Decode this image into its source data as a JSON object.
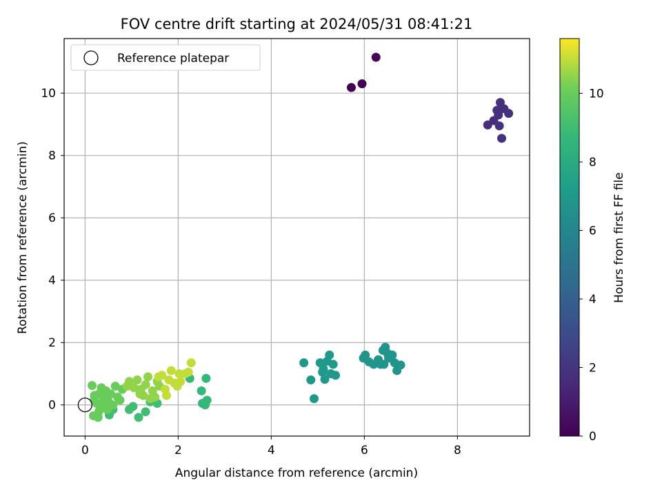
{
  "chart_data": {
    "type": "scatter",
    "title": "FOV centre drift starting at 2024/05/31 08:41:21",
    "xlabel": "Angular distance from reference (arcmin)",
    "ylabel": "Rotation from reference (arcmin)",
    "xlim": [
      -0.45,
      9.55
    ],
    "ylim": [
      -1.0,
      11.75
    ],
    "xticks": [
      0,
      2,
      4,
      6,
      8
    ],
    "yticks": [
      0,
      2,
      4,
      6,
      8,
      10
    ],
    "grid": true,
    "legend": {
      "position": "top-left",
      "entries": [
        "Reference platepar"
      ]
    },
    "reference_point": {
      "x": 0,
      "y": 0,
      "label": "Reference platepar"
    },
    "colorbar": {
      "label": "Hours from first FF file",
      "range": [
        0,
        11.6
      ],
      "ticks": [
        0,
        2,
        4,
        6,
        8,
        10
      ],
      "colormap": "viridis"
    },
    "points": [
      {
        "x": 5.72,
        "y": 10.18,
        "c": 0.0
      },
      {
        "x": 5.95,
        "y": 10.3,
        "c": 0.1
      },
      {
        "x": 6.25,
        "y": 11.15,
        "c": 0.2
      },
      {
        "x": 8.65,
        "y": 8.98,
        "c": 1.7
      },
      {
        "x": 8.78,
        "y": 9.12,
        "c": 1.7
      },
      {
        "x": 8.85,
        "y": 9.45,
        "c": 1.8
      },
      {
        "x": 8.92,
        "y": 9.7,
        "c": 1.8
      },
      {
        "x": 9.0,
        "y": 9.5,
        "c": 1.8
      },
      {
        "x": 9.1,
        "y": 9.35,
        "c": 1.9
      },
      {
        "x": 8.9,
        "y": 8.95,
        "c": 1.9
      },
      {
        "x": 8.95,
        "y": 8.55,
        "c": 1.9
      },
      {
        "x": 8.88,
        "y": 9.3,
        "c": 1.8
      },
      {
        "x": 4.7,
        "y": 1.35,
        "c": 7.0
      },
      {
        "x": 4.85,
        "y": 0.8,
        "c": 7.0
      },
      {
        "x": 4.92,
        "y": 0.2,
        "c": 7.0
      },
      {
        "x": 5.05,
        "y": 1.35,
        "c": 7.0
      },
      {
        "x": 5.1,
        "y": 1.05,
        "c": 7.0
      },
      {
        "x": 5.15,
        "y": 0.82,
        "c": 7.0
      },
      {
        "x": 5.2,
        "y": 1.4,
        "c": 7.0
      },
      {
        "x": 5.25,
        "y": 1.6,
        "c": 7.0
      },
      {
        "x": 5.28,
        "y": 1.0,
        "c": 7.0
      },
      {
        "x": 5.33,
        "y": 1.3,
        "c": 7.0
      },
      {
        "x": 5.38,
        "y": 0.95,
        "c": 7.0
      },
      {
        "x": 5.12,
        "y": 1.15,
        "c": 7.0
      },
      {
        "x": 5.98,
        "y": 1.5,
        "c": 6.8
      },
      {
        "x": 6.02,
        "y": 1.6,
        "c": 6.8
      },
      {
        "x": 6.1,
        "y": 1.38,
        "c": 6.8
      },
      {
        "x": 6.2,
        "y": 1.3,
        "c": 6.8
      },
      {
        "x": 6.3,
        "y": 1.45,
        "c": 6.8
      },
      {
        "x": 6.35,
        "y": 1.3,
        "c": 6.8
      },
      {
        "x": 6.4,
        "y": 1.75,
        "c": 6.8
      },
      {
        "x": 6.45,
        "y": 1.85,
        "c": 6.8
      },
      {
        "x": 6.5,
        "y": 1.65,
        "c": 6.8
      },
      {
        "x": 6.52,
        "y": 1.5,
        "c": 6.8
      },
      {
        "x": 6.6,
        "y": 1.6,
        "c": 6.8
      },
      {
        "x": 6.65,
        "y": 1.35,
        "c": 6.8
      },
      {
        "x": 6.7,
        "y": 1.1,
        "c": 6.8
      },
      {
        "x": 6.78,
        "y": 1.28,
        "c": 6.8
      },
      {
        "x": 6.42,
        "y": 1.3,
        "c": 6.8
      },
      {
        "x": 2.25,
        "y": 0.85,
        "c": 8.7
      },
      {
        "x": 2.5,
        "y": 0.45,
        "c": 8.7
      },
      {
        "x": 2.52,
        "y": 0.05,
        "c": 8.7
      },
      {
        "x": 2.58,
        "y": 0.0,
        "c": 8.7
      },
      {
        "x": 2.62,
        "y": 0.15,
        "c": 8.7
      },
      {
        "x": 2.6,
        "y": 0.85,
        "c": 8.7
      },
      {
        "x": 1.15,
        "y": -0.4,
        "c": 9.0
      },
      {
        "x": 0.95,
        "y": -0.15,
        "c": 9.0
      },
      {
        "x": 1.03,
        "y": -0.05,
        "c": 9.0
      },
      {
        "x": 1.3,
        "y": -0.22,
        "c": 9.0
      },
      {
        "x": 1.4,
        "y": 0.1,
        "c": 9.0
      },
      {
        "x": 1.55,
        "y": 0.05,
        "c": 9.0
      },
      {
        "x": 0.52,
        "y": -0.32,
        "c": 9.0
      },
      {
        "x": 0.6,
        "y": -0.15,
        "c": 9.0
      },
      {
        "x": 0.15,
        "y": 0.62,
        "c": 10.0
      },
      {
        "x": 0.2,
        "y": 0.3,
        "c": 10.0
      },
      {
        "x": 0.25,
        "y": 0.05,
        "c": 10.0
      },
      {
        "x": 0.3,
        "y": -0.2,
        "c": 10.0
      },
      {
        "x": 0.18,
        "y": -0.35,
        "c": 10.0
      },
      {
        "x": 0.28,
        "y": -0.4,
        "c": 10.0
      },
      {
        "x": 0.35,
        "y": 0.55,
        "c": 10.0
      },
      {
        "x": 0.4,
        "y": 0.2,
        "c": 10.0
      },
      {
        "x": 0.45,
        "y": 0.45,
        "c": 10.0
      },
      {
        "x": 0.5,
        "y": 0.1,
        "c": 10.0
      },
      {
        "x": 0.55,
        "y": 0.35,
        "c": 10.0
      },
      {
        "x": 0.6,
        "y": 0.0,
        "c": 10.0
      },
      {
        "x": 0.65,
        "y": 0.6,
        "c": 10.0
      },
      {
        "x": 0.7,
        "y": 0.25,
        "c": 10.0
      },
      {
        "x": 0.75,
        "y": 0.15,
        "c": 10.0
      },
      {
        "x": 0.8,
        "y": 0.5,
        "c": 10.0
      },
      {
        "x": 0.3,
        "y": 0.35,
        "c": 10.0
      },
      {
        "x": 0.38,
        "y": -0.05,
        "c": 10.0
      },
      {
        "x": 0.2,
        "y": 0.15,
        "c": 10.0
      },
      {
        "x": 0.48,
        "y": -0.15,
        "c": 10.0
      },
      {
        "x": 0.9,
        "y": 0.6,
        "c": 10.5
      },
      {
        "x": 0.95,
        "y": 0.75,
        "c": 10.5
      },
      {
        "x": 1.05,
        "y": 0.55,
        "c": 10.5
      },
      {
        "x": 1.12,
        "y": 0.8,
        "c": 10.5
      },
      {
        "x": 1.2,
        "y": 0.5,
        "c": 10.5
      },
      {
        "x": 1.25,
        "y": 0.3,
        "c": 10.5
      },
      {
        "x": 1.3,
        "y": 0.65,
        "c": 10.5
      },
      {
        "x": 1.35,
        "y": 0.9,
        "c": 10.5
      },
      {
        "x": 1.45,
        "y": 0.45,
        "c": 10.5
      },
      {
        "x": 1.5,
        "y": 0.25,
        "c": 10.5
      },
      {
        "x": 1.55,
        "y": 0.75,
        "c": 10.5
      },
      {
        "x": 1.6,
        "y": 0.6,
        "c": 10.5
      },
      {
        "x": 1.4,
        "y": 0.2,
        "c": 10.5
      },
      {
        "x": 1.18,
        "y": 0.35,
        "c": 10.5
      },
      {
        "x": 1.65,
        "y": 0.95,
        "c": 11.0
      },
      {
        "x": 1.72,
        "y": 0.5,
        "c": 11.0
      },
      {
        "x": 1.75,
        "y": 0.3,
        "c": 11.0
      },
      {
        "x": 1.8,
        "y": 0.8,
        "c": 11.0
      },
      {
        "x": 1.85,
        "y": 1.1,
        "c": 11.0
      },
      {
        "x": 1.92,
        "y": 0.7,
        "c": 11.0
      },
      {
        "x": 1.98,
        "y": 0.6,
        "c": 11.0
      },
      {
        "x": 2.02,
        "y": 1.0,
        "c": 11.0
      },
      {
        "x": 2.05,
        "y": 0.75,
        "c": 11.0
      },
      {
        "x": 2.15,
        "y": 1.0,
        "c": 11.0
      },
      {
        "x": 2.22,
        "y": 1.05,
        "c": 11.0
      },
      {
        "x": 2.28,
        "y": 1.35,
        "c": 11.0
      },
      {
        "x": 1.58,
        "y": 0.9,
        "c": 11.0
      }
    ]
  }
}
